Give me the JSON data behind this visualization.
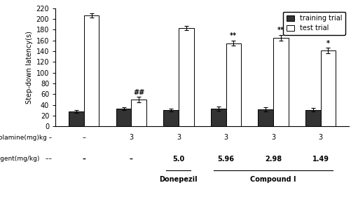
{
  "training_values": [
    28,
    33,
    30,
    33,
    32,
    31
  ],
  "training_errors": [
    2.5,
    3.0,
    2.5,
    3.5,
    3.5,
    3.0
  ],
  "test_values": [
    207,
    50,
    183,
    155,
    165,
    141
  ],
  "test_errors": [
    4,
    5,
    4,
    5,
    5,
    5
  ],
  "training_color": "#333333",
  "test_color": "#ffffff",
  "bar_edge_color": "#000000",
  "bar_width": 0.32,
  "ylim": [
    0,
    220
  ],
  "yticks": [
    0,
    20,
    40,
    60,
    80,
    100,
    120,
    140,
    160,
    180,
    200,
    220
  ],
  "ylabel": "Step-down latency(s)",
  "scopolamine_values": [
    "–",
    "3",
    "3",
    "3",
    "3",
    "3"
  ],
  "test_agent_values": [
    "–",
    "–",
    "5.0",
    "5.96",
    "2.98",
    "1.49"
  ],
  "annotations_test": [
    null,
    "##",
    null,
    "**",
    "**",
    "*"
  ],
  "scopolamine_row_label": "Scopolamine(mg)kg –",
  "test_agent_row_label": "Test agent(mg/kg)   ––",
  "donepezil_label": "Donepezil",
  "compound_label": "Compound I",
  "legend_labels": [
    "training trial",
    "test trial"
  ],
  "background_color": "#ffffff"
}
